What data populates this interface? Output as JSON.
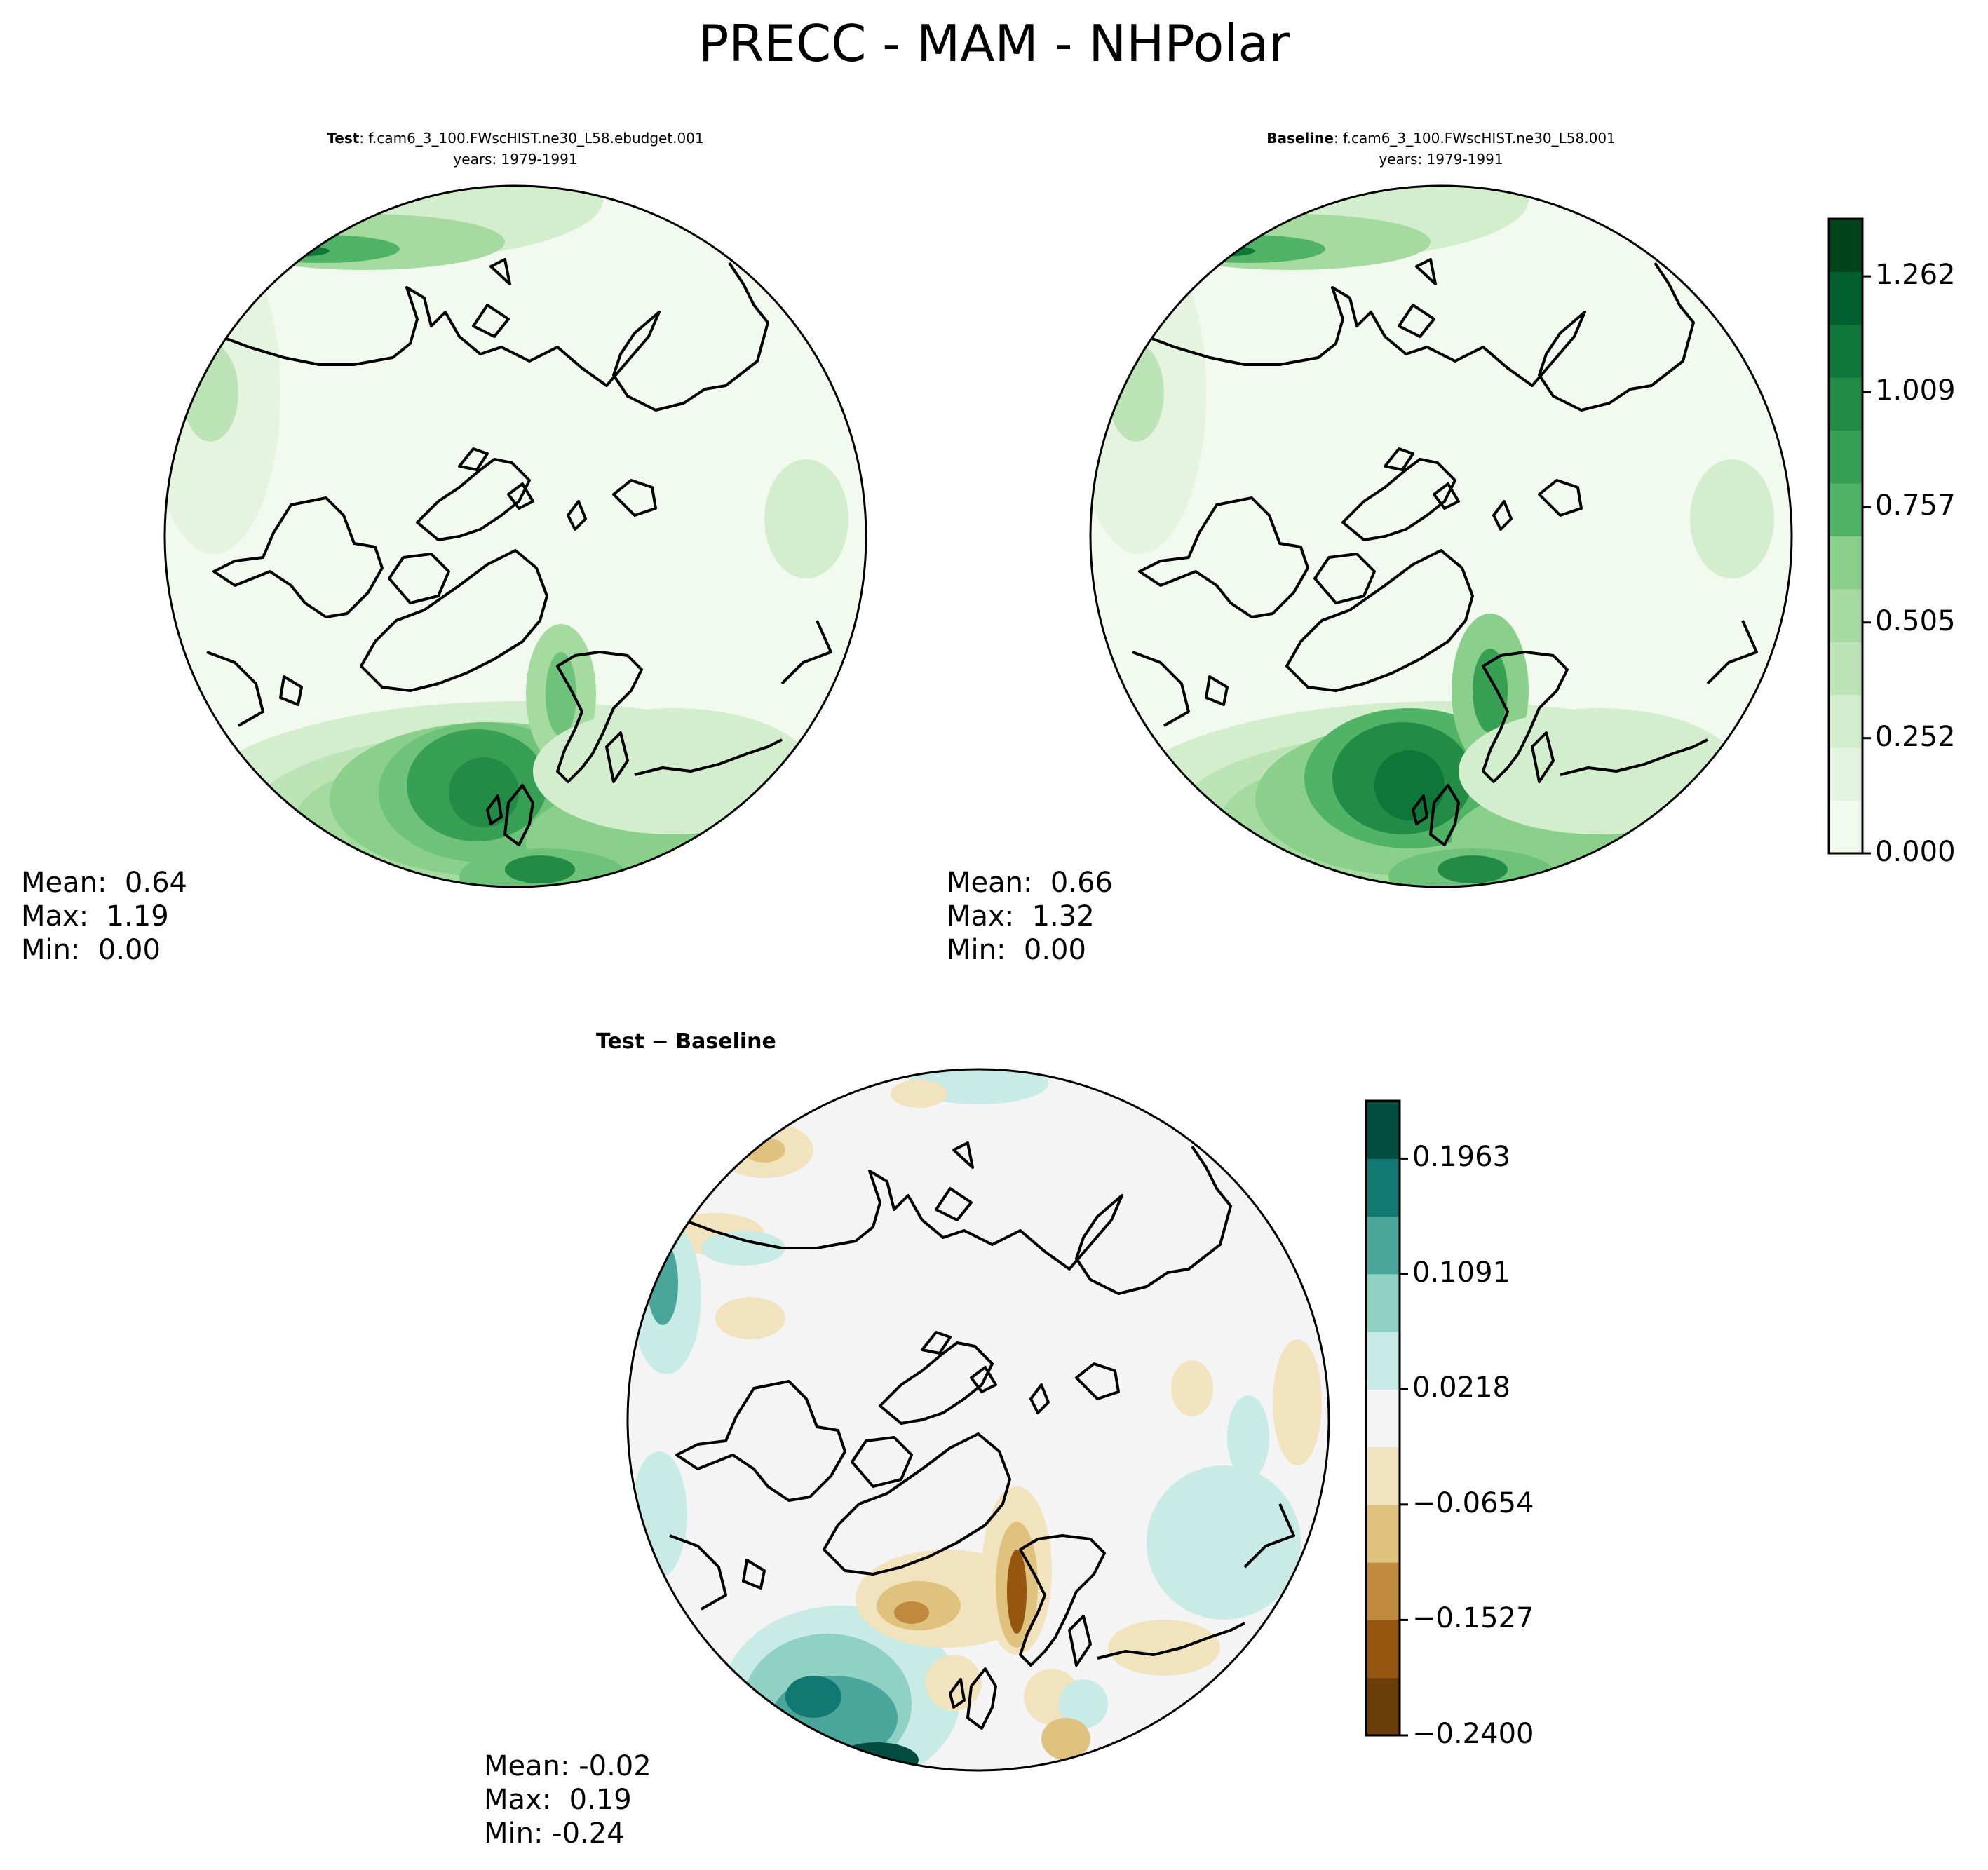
{
  "title": "PRECC - MAM - NHPolar",
  "colors": {
    "green_scale": [
      "#f2faef",
      "#e4f4df",
      "#d3eecd",
      "#bce4b6",
      "#a5dba0",
      "#8ad08b",
      "#6fc27a",
      "#51b366",
      "#37a055",
      "#228b45",
      "#0d7638",
      "#005f2c",
      "#00441b"
    ],
    "diff_scale": [
      "#6a3d0b",
      "#95560f",
      "#c08a3e",
      "#dfc27d",
      "#f2e3bf",
      "#f4f4f4",
      "#c8ebe5",
      "#8fd1c3",
      "#4aa69b",
      "#127872",
      "#044c40"
    ]
  },
  "chart_data": [
    {
      "type": "heatmap",
      "projection": "north-polar-stereographic",
      "title_bold": "Test",
      "title_rest": ": f.cam6_3_100.FWscHIST.ne30_L58.ebudget.001",
      "subtitle": "years: 1979-1991",
      "stats": {
        "mean": "0.64",
        "max": "1.19",
        "min": "0.00"
      },
      "stats_labels": {
        "mean": "Mean:",
        "max": "Max:",
        "min": "Min:"
      }
    },
    {
      "type": "heatmap",
      "projection": "north-polar-stereographic",
      "title_bold": "Baseline",
      "title_rest": ": f.cam6_3_100.FWscHIST.ne30_L58.001",
      "subtitle": "years: 1979-1991",
      "stats": {
        "mean": "0.66",
        "max": "1.32",
        "min": "0.00"
      },
      "stats_labels": {
        "mean": "Mean:",
        "max": "Max:",
        "min": "Min:"
      },
      "colorbar": {
        "ticks": [
          "0.000",
          "0.252",
          "0.505",
          "0.757",
          "1.009",
          "1.262"
        ],
        "tick_values": [
          0.0,
          0.252,
          0.505,
          0.757,
          1.009,
          1.262
        ],
        "range": [
          0.0,
          1.388
        ],
        "levels": 12
      }
    },
    {
      "type": "heatmap",
      "projection": "north-polar-stereographic",
      "title_bold_a": "Test",
      "title_sep": "−",
      "title_bold_b": "Baseline",
      "stats": {
        "mean": "-0.02",
        "max": " 0.19",
        "min": "-0.24"
      },
      "stats_labels": {
        "mean": "Mean:",
        "max": "Max:",
        "min": "Min:"
      },
      "colorbar": {
        "ticks": [
          "−0.2400",
          "−0.1527",
          "−0.0654",
          "0.0218",
          "0.1091",
          "0.1963"
        ],
        "tick_values": [
          -0.24,
          -0.1527,
          -0.0654,
          0.0218,
          0.1091,
          0.1963
        ],
        "range": [
          -0.24,
          0.24
        ],
        "levels": 11
      }
    }
  ]
}
